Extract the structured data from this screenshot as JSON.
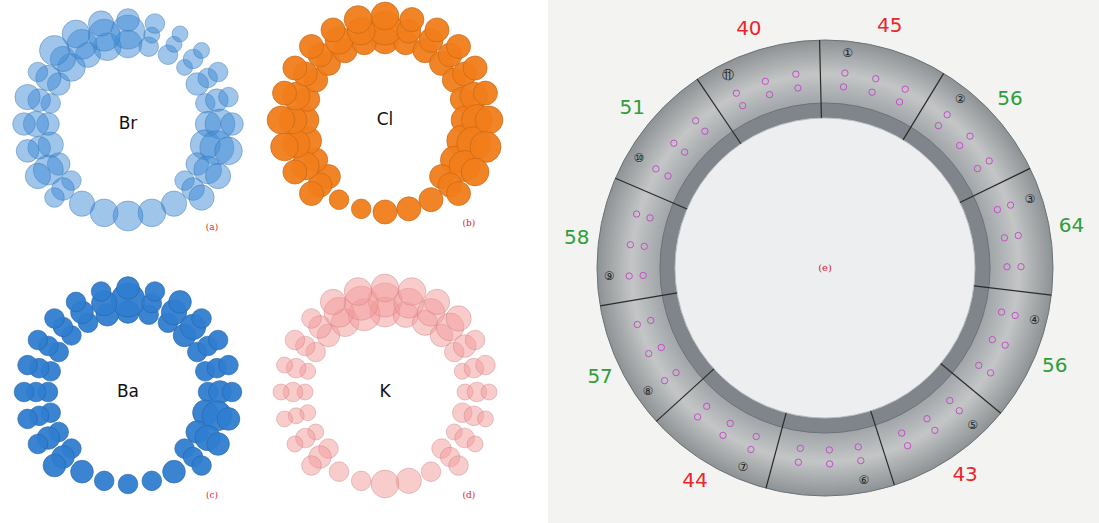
{
  "chart_data": [
    {
      "type": "bubble",
      "title": "Br",
      "label": "(a)",
      "color": "#3f8bd6",
      "marker": "translucent",
      "angles": [
        0,
        15,
        30,
        45,
        60,
        75,
        90,
        105,
        120,
        135,
        150,
        165,
        180,
        195,
        210,
        225,
        240,
        255,
        270,
        285,
        300,
        315,
        330,
        345
      ],
      "series": [
        {
          "values": [
            6,
            3,
            3,
            2,
            4,
            3,
            5,
            7,
            4,
            3,
            null,
            null,
            null,
            null,
            null,
            3,
            4,
            5,
            4,
            3,
            4,
            6,
            5,
            6
          ]
        },
        {
          "values": [
            9,
            2,
            2,
            3,
            3,
            4,
            7,
            9,
            6,
            4,
            5,
            6,
            7,
            6,
            5,
            4,
            7,
            4,
            5,
            4,
            5,
            5,
            7,
            8
          ]
        },
        {
          "values": [
            4,
            3,
            2,
            2,
            3,
            3,
            4,
            6,
            5,
            5,
            null,
            null,
            null,
            null,
            null,
            3,
            5,
            4,
            4,
            5,
            3,
            7,
            6,
            5
          ]
        }
      ]
    },
    {
      "type": "bubble",
      "title": "Cl",
      "label": "(b)",
      "color": "#f07d1a",
      "marker": "solid",
      "angles": [
        0,
        15,
        30,
        45,
        60,
        75,
        90,
        105,
        120,
        135,
        150,
        165,
        180,
        195,
        210,
        225,
        240,
        255,
        270,
        285,
        300,
        315,
        330,
        345
      ],
      "series": [
        {
          "values": [
            4,
            3,
            3,
            3,
            3,
            3,
            4,
            5,
            4,
            3,
            null,
            null,
            null,
            null,
            null,
            3,
            3,
            4,
            4,
            3,
            3,
            3,
            3,
            3
          ]
        },
        {
          "values": [
            6,
            3,
            3,
            3,
            3,
            4,
            5,
            6,
            5,
            3,
            3,
            3,
            3,
            2,
            2,
            3,
            4,
            4,
            4,
            4,
            3,
            3,
            4,
            4
          ]
        },
        {
          "values": [
            4,
            3,
            3,
            3,
            3,
            3,
            4,
            5,
            4,
            3,
            null,
            null,
            null,
            null,
            null,
            3,
            3,
            4,
            4,
            3,
            3,
            3,
            3,
            4
          ]
        }
      ]
    },
    {
      "type": "bubble",
      "title": "Ba",
      "label": "(c)",
      "color": "#2f7dd0",
      "marker": "solid",
      "angles": [
        0,
        15,
        30,
        45,
        60,
        75,
        90,
        105,
        120,
        135,
        150,
        165,
        180,
        195,
        210,
        225,
        240,
        255,
        270,
        285,
        300,
        315,
        330,
        345
      ],
      "series": [
        {
          "values": [
            4,
            3,
            3,
            4,
            3,
            3,
            3,
            5,
            4,
            3,
            null,
            null,
            null,
            null,
            null,
            3,
            3,
            3,
            3,
            3,
            3,
            3,
            3,
            4
          ]
        },
        {
          "values": [
            9,
            3,
            5,
            5,
            3,
            3,
            4,
            7,
            5,
            3,
            4,
            3,
            3,
            3,
            4,
            4,
            4,
            3,
            3,
            3,
            3,
            3,
            4,
            5
          ]
        },
        {
          "values": [
            4,
            3,
            4,
            3,
            3,
            3,
            3,
            4,
            4,
            3,
            null,
            null,
            null,
            null,
            null,
            4,
            3,
            3,
            3,
            3,
            3,
            3,
            3,
            3
          ]
        }
      ]
    },
    {
      "type": "bubble",
      "title": "K",
      "label": "(d)",
      "color": "#f49a9a",
      "marker": "translucent",
      "angles": [
        0,
        15,
        30,
        45,
        60,
        75,
        90,
        105,
        120,
        135,
        150,
        165,
        180,
        195,
        210,
        225,
        240,
        255,
        270,
        285,
        300,
        315,
        330,
        345
      ],
      "series": [
        {
          "values": [
            7,
            5,
            5,
            4,
            3,
            2,
            2,
            3,
            2,
            3,
            null,
            null,
            null,
            null,
            null,
            3,
            2,
            2,
            2,
            2,
            3,
            4,
            6,
            8
          ]
        },
        {
          "values": [
            9,
            7,
            6,
            6,
            4,
            3,
            3,
            3,
            3,
            3,
            3,
            5,
            6,
            3,
            3,
            4,
            3,
            2,
            3,
            3,
            3,
            4,
            7,
            9
          ]
        },
        {
          "values": [
            6,
            6,
            5,
            5,
            3,
            3,
            2,
            2,
            2,
            3,
            null,
            null,
            null,
            null,
            null,
            3,
            2,
            2,
            2,
            2,
            3,
            3,
            5,
            6
          ]
        }
      ]
    },
    {
      "type": "ring",
      "label": "(e)",
      "data_labels": true,
      "segments": [
        "①",
        "②",
        "③",
        "④",
        "⑤",
        "⑥",
        "⑦",
        "⑧",
        "⑨",
        "⑩",
        "⑪"
      ],
      "values": [
        45,
        56,
        64,
        56,
        43,
        null,
        44,
        57,
        58,
        51,
        40
      ],
      "colors": [
        "#e8262b",
        "#2e9e3a",
        "#2e9e3a",
        "#2e9e3a",
        "#e8262b",
        "#e8262b",
        "#e8262b",
        "#2e9e3a",
        "#2e9e3a",
        "#2e9e3a",
        "#e8262b"
      ]
    }
  ]
}
